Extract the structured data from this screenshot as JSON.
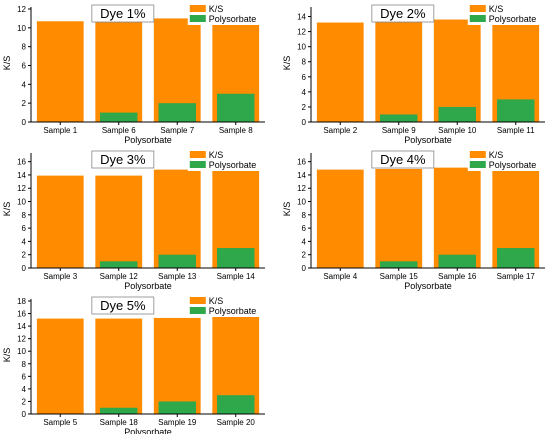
{
  "colors": {
    "ks": "#ff8c00",
    "polysorbate": "#2ea84a",
    "axis": "#000000"
  },
  "chart_data": [
    {
      "type": "bar",
      "title": "Dye 1%",
      "xlabel": "Polysorbate",
      "ylabel": "K/S",
      "ylim": [
        0,
        12
      ],
      "yticks": [
        0,
        2,
        4,
        6,
        8,
        10,
        12
      ],
      "categories": [
        "Sample 1",
        "Sample 6",
        "Sample 7",
        "Sample 8"
      ],
      "legend_position": "top-right",
      "series": [
        {
          "name": "K/S",
          "values": [
            10.7,
            10.7,
            11.0,
            11.0
          ]
        },
        {
          "name": "Polysorbate",
          "values": [
            0,
            1,
            2,
            3
          ]
        }
      ]
    },
    {
      "type": "bar",
      "title": "Dye 2%",
      "xlabel": "Polysorbate",
      "ylabel": "K/S",
      "ylim": [
        0,
        15
      ],
      "yticks": [
        0,
        2,
        4,
        6,
        8,
        10,
        12,
        14
      ],
      "categories": [
        "Sample 2",
        "Sample 9",
        "Sample 10",
        "Sample 11"
      ],
      "legend_position": "top-right",
      "series": [
        {
          "name": "K/S",
          "values": [
            13.2,
            13.3,
            13.6,
            13.7
          ]
        },
        {
          "name": "Polysorbate",
          "values": [
            0,
            1,
            2,
            3
          ]
        }
      ]
    },
    {
      "type": "bar",
      "title": "Dye 3%",
      "xlabel": "Polysorbate",
      "ylabel": "K/S",
      "ylim": [
        0,
        17
      ],
      "yticks": [
        0,
        2,
        4,
        6,
        8,
        10,
        12,
        14,
        16
      ],
      "categories": [
        "Sample 3",
        "Sample 12",
        "Sample 13",
        "Sample 14"
      ],
      "legend_position": "top-right",
      "series": [
        {
          "name": "K/S",
          "values": [
            13.9,
            13.9,
            14.8,
            14.8
          ]
        },
        {
          "name": "Polysorbate",
          "values": [
            0,
            1,
            2,
            3
          ]
        }
      ]
    },
    {
      "type": "bar",
      "title": "Dye 4%",
      "xlabel": "Polysorbate",
      "ylabel": "K/S",
      "ylim": [
        0,
        17
      ],
      "yticks": [
        0,
        2,
        4,
        6,
        8,
        10,
        12,
        14,
        16
      ],
      "categories": [
        "Sample 4",
        "Sample 15",
        "Sample 16",
        "Sample 17"
      ],
      "legend_position": "top-right",
      "series": [
        {
          "name": "K/S",
          "values": [
            14.8,
            14.9,
            15.1,
            15.1
          ]
        },
        {
          "name": "Polysorbate",
          "values": [
            0,
            1,
            2,
            3
          ]
        }
      ]
    },
    {
      "type": "bar",
      "title": "Dye 5%",
      "xlabel": "Polysorbate",
      "ylabel": "K/S",
      "ylim": [
        0,
        18
      ],
      "yticks": [
        0,
        2,
        4,
        6,
        8,
        10,
        12,
        14,
        16,
        18
      ],
      "categories": [
        "Sample 5",
        "Sample 18",
        "Sample 19",
        "Sample 20"
      ],
      "legend_position": "top-right",
      "series": [
        {
          "name": "K/S",
          "values": [
            15.2,
            15.2,
            15.3,
            15.9
          ]
        },
        {
          "name": "Polysorbate",
          "values": [
            0,
            1,
            2,
            3
          ]
        }
      ]
    }
  ]
}
